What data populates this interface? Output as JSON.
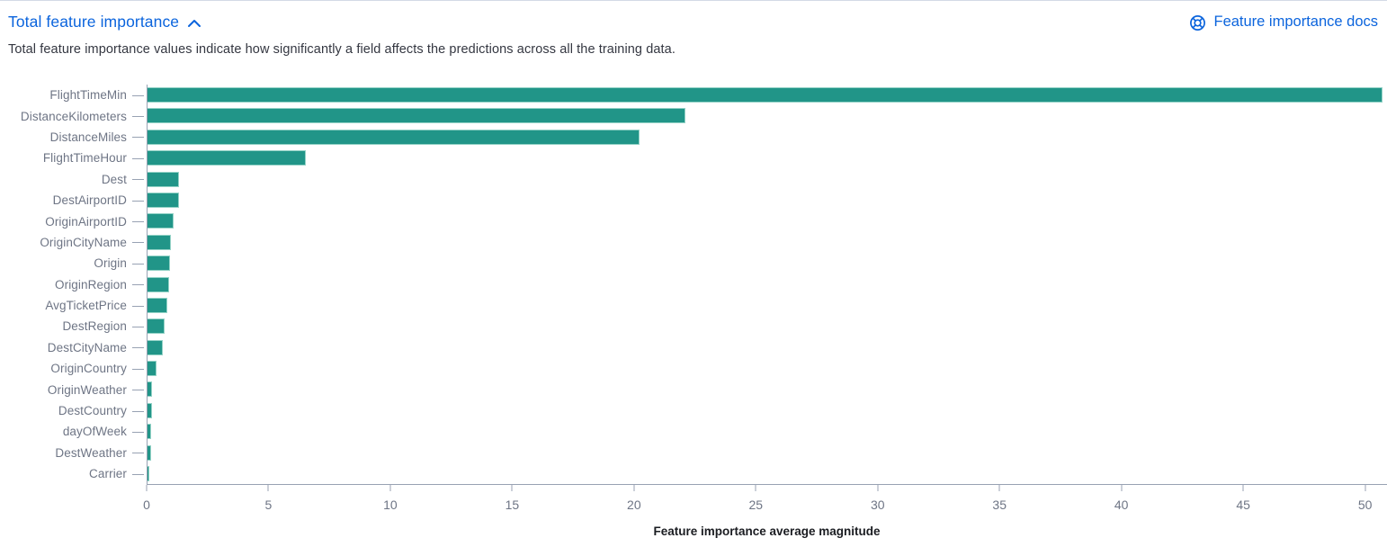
{
  "header": {
    "title": "Total feature importance",
    "collapse_icon": "chevron-up-icon",
    "docs_link_label": "Feature importance docs",
    "docs_icon": "help-lifebuoy-icon"
  },
  "description": "Total feature importance values indicate how significantly a field affects the predictions across all the training data.",
  "colors": {
    "bar": "#219588",
    "bar_border": "#93d2c6",
    "link_blue": "#0b64dd",
    "axis_line": "#98a2b3",
    "axis_text": "#6e7585",
    "body_text": "#343741"
  },
  "chart_data": {
    "type": "bar",
    "orientation": "horizontal",
    "title": "",
    "xlabel": "Feature importance average magnitude",
    "ylabel": "",
    "grid": false,
    "legend": "none",
    "xlim": [
      0,
      50.9
    ],
    "xticks": [
      0,
      5,
      10,
      15,
      20,
      25,
      30,
      35,
      40,
      45,
      50
    ],
    "categories": [
      "FlightTimeMin",
      "DistanceKilometers",
      "DistanceMiles",
      "FlightTimeHour",
      "Dest",
      "DestAirportID",
      "OriginAirportID",
      "OriginCityName",
      "Origin",
      "OriginRegion",
      "AvgTicketPrice",
      "DestRegion",
      "DestCityName",
      "OriginCountry",
      "OriginWeather",
      "DestCountry",
      "dayOfWeek",
      "DestWeather",
      "Carrier"
    ],
    "values": [
      50.7,
      22.1,
      20.2,
      6.5,
      1.31,
      1.28,
      1.06,
      0.96,
      0.94,
      0.87,
      0.83,
      0.72,
      0.61,
      0.38,
      0.19,
      0.17,
      0.16,
      0.13,
      0.07
    ]
  }
}
